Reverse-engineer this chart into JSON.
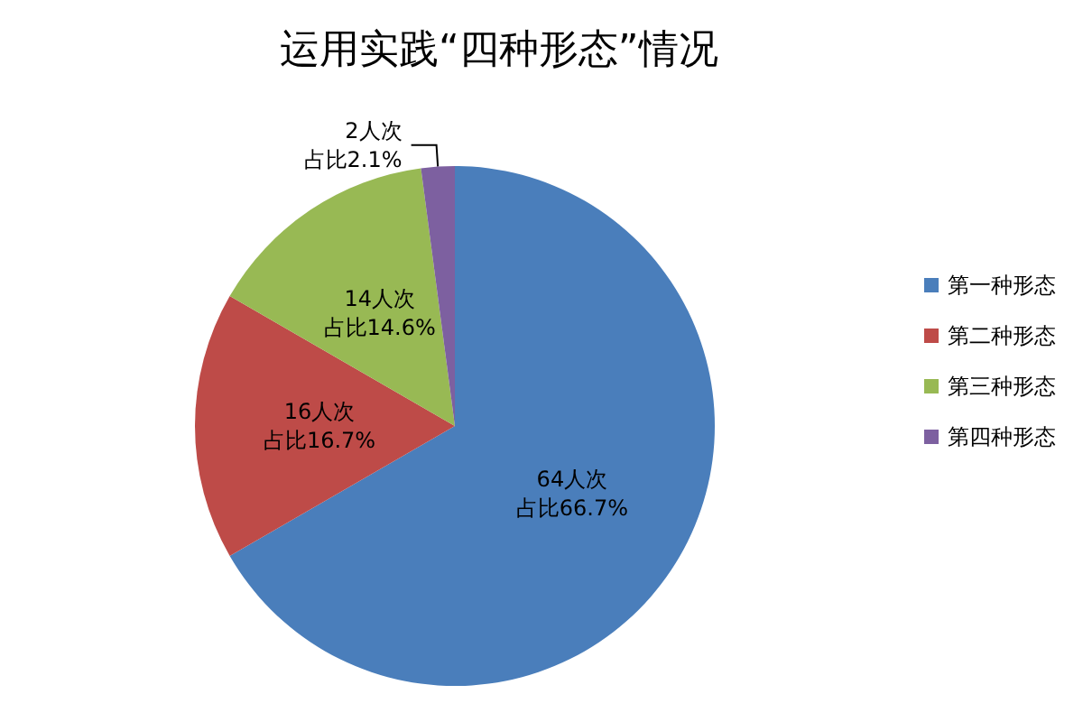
{
  "chart_data": {
    "type": "pie",
    "title": "运用实践“四种形态”情况",
    "categories": [
      "第一种形态",
      "第二种形态",
      "第三种形态",
      "第四种形态"
    ],
    "values": [
      64,
      16,
      14,
      2
    ],
    "colors": [
      "#4a7ebb",
      "#be4b48",
      "#98b954",
      "#7d60a0"
    ],
    "value_labels": [
      "64人次占比66.7%",
      "16人次占比16.7%",
      "14人次占比14.6%",
      "2人次占比2.1%"
    ],
    "legend": "right"
  }
}
